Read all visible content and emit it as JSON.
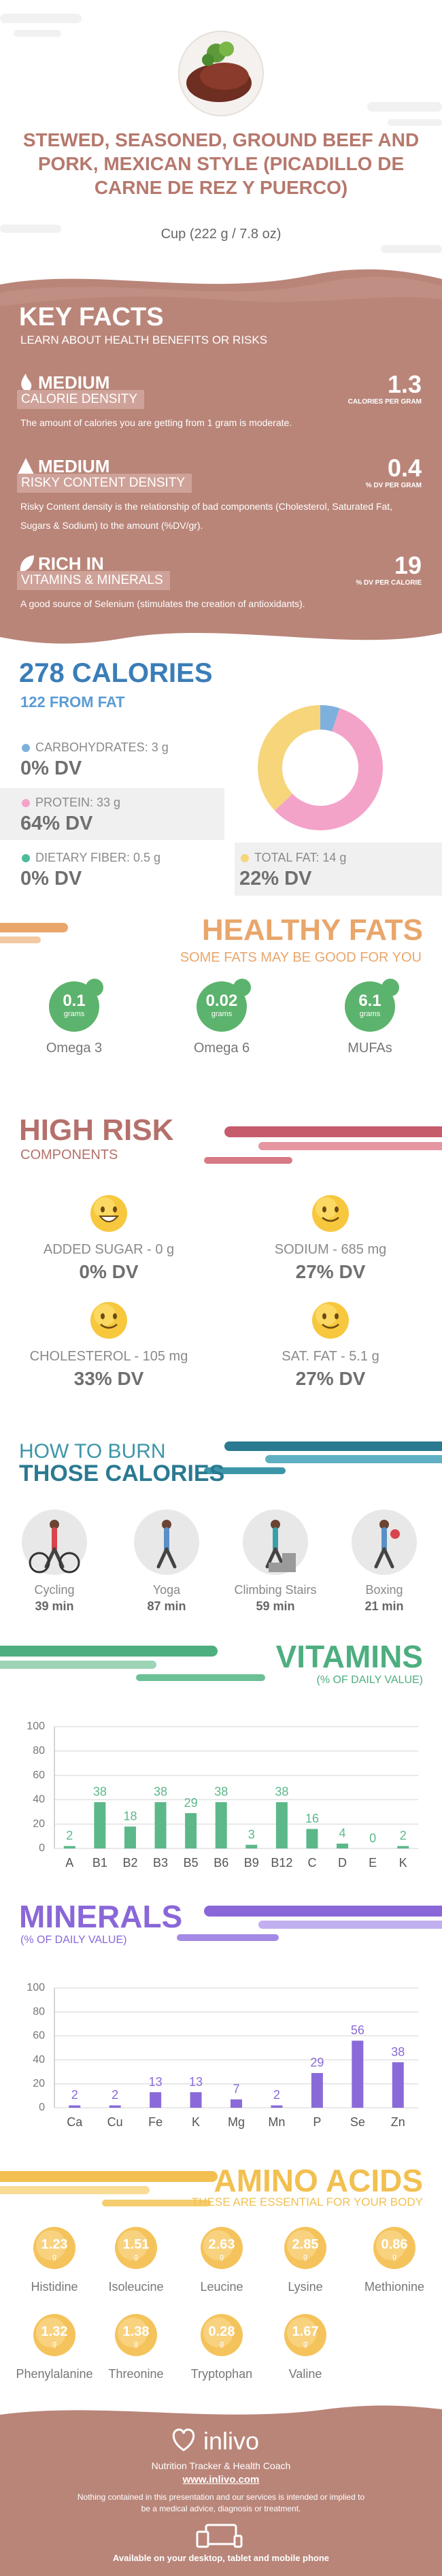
{
  "header": {
    "title": "STEWED, SEASONED, GROUND BEEF AND PORK, MEXICAN STYLE (PICADILLO DE CARNE DE REZ Y PUERCO)",
    "serving": "Cup (222 g / 7.8 oz)"
  },
  "key_facts": {
    "title": "KEY FACTS",
    "subtitle": "LEARN ABOUT HEALTH BENEFITS OR RISKS",
    "items": [
      {
        "level": "MEDIUM",
        "label": "CALORIE DENSITY",
        "value": 1.3,
        "unit": "CALORIES PER GRAM",
        "description": "The amount of calories you are getting from 1 gram is moderate."
      },
      {
        "level": "MEDIUM",
        "label": "RISKY CONTENT DENSITY",
        "value": 0.4,
        "unit": "% DV PER GRAM",
        "description": "Risky Content density is the relationship of bad components (Cholesterol, Saturated Fat, Sugars & Sodium) to the amount (%DV/gr)."
      },
      {
        "level": "RICH IN",
        "label": "VITAMINS & MINERALS",
        "value": 19,
        "unit": "% DV PER CALORIE",
        "description": "A good source of Selenium (stimulates the creation of antioxidants)."
      }
    ]
  },
  "calories": {
    "title": "278 CALORIES",
    "subtitle": "122 FROM FAT",
    "nutrients": [
      {
        "label": "CARBOHYDRATES: 3 g",
        "dv": "0% DV",
        "color": "#7eb0de"
      },
      {
        "label": "PROTEIN: 33 g",
        "dv": "64% DV",
        "color": "#f4a3c8"
      },
      {
        "label": "DIETARY FIBER: 0.5 g",
        "dv": "0% DV",
        "color": "#4dbb9c"
      },
      {
        "label": "TOTAL FAT: 14 g",
        "dv": "22% DV",
        "color": "#f6d57b"
      }
    ],
    "pie": {
      "type": "pie",
      "values": [
        5,
        58,
        37
      ],
      "colors": [
        "#7eb0de",
        "#f4a3c8",
        "#f6d57b"
      ]
    }
  },
  "healthy_fats": {
    "title": "HEALTHY FATS",
    "subtitle": "SOME FATS MAY BE GOOD FOR YOU",
    "unit": "grams",
    "items": [
      {
        "value": 0.1,
        "name": "Omega 3"
      },
      {
        "value": 0.02,
        "name": "Omega 6"
      },
      {
        "value": 6.1,
        "name": "MUFAs"
      }
    ]
  },
  "high_risk": {
    "title": "HIGH RISK",
    "subtitle": "COMPONENTS",
    "items": [
      {
        "label": "ADDED SUGAR - 0 g",
        "dv": "0% DV"
      },
      {
        "label": "SODIUM - 685 mg",
        "dv": "27% DV"
      },
      {
        "label": "CHOLESTEROL - 105 mg",
        "dv": "33% DV"
      },
      {
        "label": "SAT. FAT - 5.1 g",
        "dv": "27% DV"
      }
    ]
  },
  "burn": {
    "title_line1": "HOW TO BURN",
    "title_line2": "THOSE CALORIES",
    "activities": [
      {
        "name": "Cycling",
        "time": "39 min"
      },
      {
        "name": "Yoga",
        "time": "87 min"
      },
      {
        "name": "Climbing Stairs",
        "time": "59 min"
      },
      {
        "name": "Boxing",
        "time": "21 min"
      }
    ]
  },
  "vitamins": {
    "title": "VITAMINS",
    "subtitle": "(% OF DAILY VALUE)",
    "chart": {
      "type": "bar",
      "categories": [
        "A",
        "B1",
        "B2",
        "B3",
        "B5",
        "B6",
        "B9",
        "B12",
        "C",
        "D",
        "E",
        "K"
      ],
      "values": [
        2,
        38,
        18,
        38,
        29,
        38,
        3,
        38,
        16,
        4,
        0,
        2
      ],
      "color": "#5cb889",
      "ylim": [
        0,
        100
      ],
      "yticks": [
        0,
        20,
        40,
        60,
        80,
        100
      ],
      "grid": true
    }
  },
  "minerals": {
    "title": "MINERALS",
    "subtitle": "(% OF DAILY VALUE)",
    "chart": {
      "type": "bar",
      "categories": [
        "Ca",
        "Cu",
        "Fe",
        "K",
        "Mg",
        "Mn",
        "P",
        "Se",
        "Zn"
      ],
      "values": [
        2,
        2,
        13,
        13,
        7,
        2,
        29,
        56,
        38
      ],
      "color": "#8a6ad9",
      "ylim": [
        0,
        100
      ],
      "yticks": [
        0,
        20,
        40,
        60,
        80,
        100
      ],
      "grid": true
    }
  },
  "amino_acids": {
    "title": "AMINO ACIDS",
    "subtitle": "THESE ARE ESSENTIAL FOR YOUR BODY",
    "unit": "g",
    "items": [
      {
        "name": "Histidine",
        "value": 1.23
      },
      {
        "name": "Isoleucine",
        "value": 1.51
      },
      {
        "name": "Leucine",
        "value": 2.63
      },
      {
        "name": "Lysine",
        "value": 2.85
      },
      {
        "name": "Methionine",
        "value": 0.86
      },
      {
        "name": "Phenylalanine",
        "value": 1.32
      },
      {
        "name": "Threonine",
        "value": 1.38
      },
      {
        "name": "Tryptophan",
        "value": 0.28
      },
      {
        "name": "Valine",
        "value": 1.67
      }
    ]
  },
  "footer": {
    "brand": "inlivo",
    "tagline": "Nutrition Tracker & Health Coach",
    "url": "www.inlivo.com",
    "disclaimer": "Nothing contained in this presentation and our services is intended or implied to be a medical advice, diagnosis or treatment.",
    "availability": "Available on your desktop, tablet and mobile phone"
  }
}
